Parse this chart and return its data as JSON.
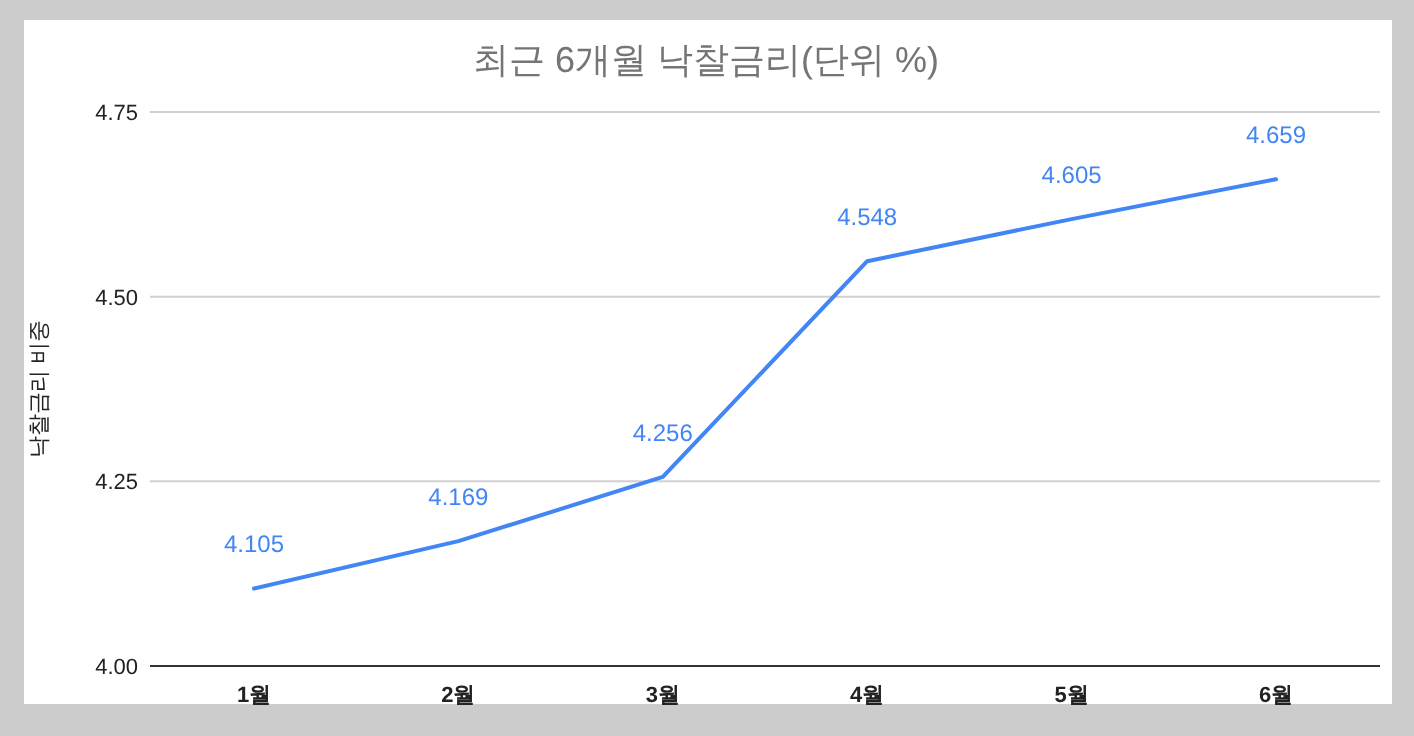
{
  "chart_data": {
    "type": "line",
    "title": "최근 6개월 낙찰금리(단위 %)",
    "ylabel": "낙찰금리 비중",
    "categories": [
      "1월",
      "2월",
      "3월",
      "4월",
      "5월",
      "6월"
    ],
    "series": [
      {
        "color": "#4285f4",
        "values": [
          4.105,
          4.169,
          4.256,
          4.548,
          4.605,
          4.659
        ]
      }
    ],
    "ylim": [
      4.0,
      4.75
    ],
    "yticks": [
      {
        "value": 4.0,
        "label": "4.00"
      },
      {
        "value": 4.25,
        "label": "4.25"
      },
      {
        "value": 4.5,
        "label": "4.50"
      },
      {
        "value": 4.75,
        "label": "4.75"
      }
    ],
    "grid": "y",
    "data_labels": true,
    "marker": "none",
    "line_style": "solid"
  }
}
